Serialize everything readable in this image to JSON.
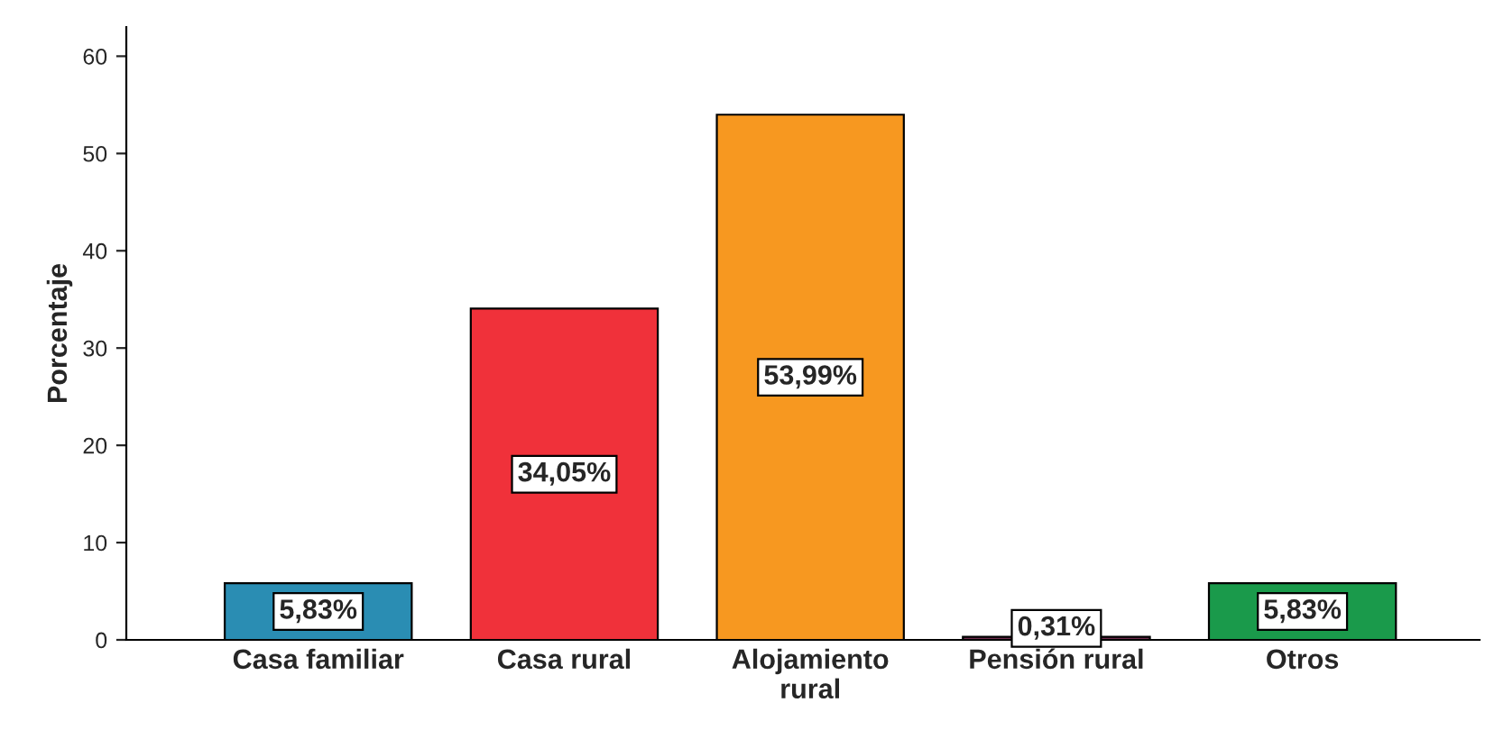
{
  "chart_data": {
    "type": "bar",
    "ylabel": "Porcentaje",
    "categories": [
      "Casa familiar",
      "Casa rural",
      "Alojamiento\nrural",
      "Pensión rural",
      "Otros"
    ],
    "values": [
      5.83,
      34.05,
      53.99,
      0.31,
      5.83
    ],
    "colors": [
      "#2a8db3",
      "#f0313a",
      "#f79820",
      "#6d2b4c",
      "#1a9a4b"
    ],
    "value_labels": [
      "5,83%",
      "34,05%",
      "53,99%",
      "0,31%",
      "5,83%"
    ],
    "ylim": [
      0,
      63
    ],
    "yticks": [
      0,
      10,
      20,
      30,
      40,
      50,
      60
    ],
    "grid": false,
    "legend": false
  }
}
